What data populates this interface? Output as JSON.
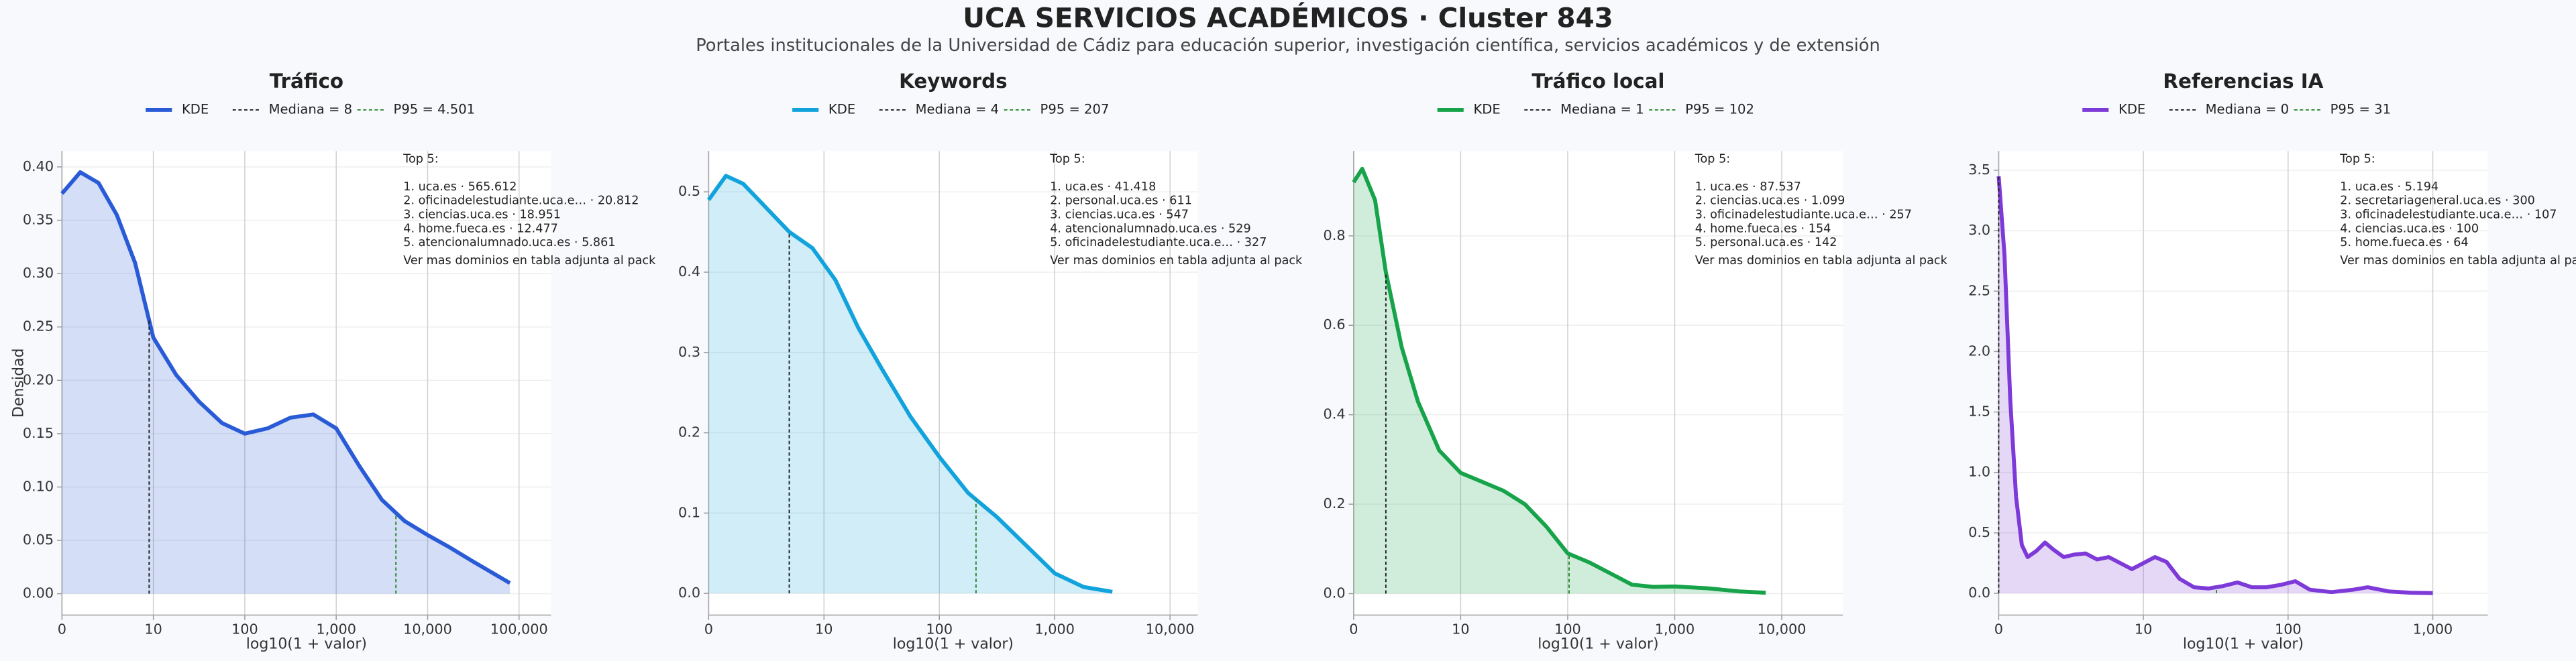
{
  "title": "UCA SERVICIOS ACADÉMICOS · Cluster 843",
  "subtitle": "Portales institucionales de la Universidad de Cádiz para educación superior, investigación científica, servicios académicos y de extensión",
  "chart_data": [
    {
      "type": "area",
      "title": "Tráfico",
      "x_label": "log10(1 + valor)",
      "y_label": "Densidad",
      "grid": true,
      "x": [
        0,
        0.2,
        0.4,
        0.6,
        0.8,
        1.0,
        1.25,
        1.5,
        1.75,
        2.0,
        2.25,
        2.5,
        2.75,
        3.0,
        3.25,
        3.5,
        3.75,
        4.0,
        4.25,
        4.5,
        4.7,
        4.9
      ],
      "series": [
        {
          "name": "KDE",
          "color": "#2a5bd7",
          "values": [
            0.375,
            0.395,
            0.385,
            0.355,
            0.31,
            0.24,
            0.205,
            0.18,
            0.16,
            0.15,
            0.155,
            0.165,
            0.168,
            0.155,
            0.12,
            0.088,
            0.068,
            0.055,
            0.043,
            0.03,
            0.02,
            0.01
          ]
        }
      ],
      "ref_lines": [
        {
          "name": "Mediana = 8",
          "x": 0.954,
          "color": "#222222"
        },
        {
          "name": "P95 = 4.501",
          "x": 3.653,
          "color": "#2e8b2e"
        }
      ],
      "xlim": [
        0,
        5.35
      ],
      "ylim": [
        -0.02,
        0.415
      ],
      "xticks": [
        {
          "value": 0,
          "label": "0"
        },
        {
          "value": 1,
          "label": "10"
        },
        {
          "value": 2,
          "label": "100"
        },
        {
          "value": 3,
          "label": "1,000"
        },
        {
          "value": 4,
          "label": "10,000"
        },
        {
          "value": 5,
          "label": "100,000"
        }
      ],
      "yticks": [
        {
          "value": 0,
          "label": "0.00"
        },
        {
          "value": 0.05,
          "label": "0.05"
        },
        {
          "value": 0.1,
          "label": "0.10"
        },
        {
          "value": 0.15,
          "label": "0.15"
        },
        {
          "value": 0.2,
          "label": "0.20"
        },
        {
          "value": 0.25,
          "label": "0.25"
        },
        {
          "value": 0.3,
          "label": "0.30"
        },
        {
          "value": 0.35,
          "label": "0.35"
        },
        {
          "value": 0.4,
          "label": "0.40"
        }
      ],
      "annotation": {
        "heading": "Top 5:",
        "items": [
          "1. uca.es · 565.612",
          "2. oficinadelestudiante.uca.e… · 20.812",
          "3. ciencias.uca.es · 18.951",
          "4. home.fueca.es · 12.477",
          "5. atencionalumnado.uca.es · 5.861"
        ],
        "footer": "Ver mas dominios en tabla adjunta al pack"
      }
    },
    {
      "type": "area",
      "title": "Keywords",
      "x_label": "log10(1 + valor)",
      "grid": true,
      "x": [
        0,
        0.15,
        0.3,
        0.5,
        0.7,
        0.9,
        1.1,
        1.3,
        1.5,
        1.75,
        2.0,
        2.25,
        2.5,
        2.75,
        3.0,
        3.25,
        3.5
      ],
      "series": [
        {
          "name": "KDE",
          "color": "#12a3dc",
          "values": [
            0.49,
            0.52,
            0.51,
            0.48,
            0.45,
            0.43,
            0.39,
            0.33,
            0.28,
            0.22,
            0.17,
            0.125,
            0.095,
            0.06,
            0.025,
            0.008,
            0.002
          ]
        }
      ],
      "ref_lines": [
        {
          "name": "Mediana = 4",
          "x": 0.699,
          "color": "#222222"
        },
        {
          "name": "P95 = 207",
          "x": 2.318,
          "color": "#2e8b2e"
        }
      ],
      "xlim": [
        0,
        4.24
      ],
      "ylim": [
        -0.027,
        0.551
      ],
      "xticks": [
        {
          "value": 0,
          "label": "0"
        },
        {
          "value": 1,
          "label": "10"
        },
        {
          "value": 2,
          "label": "100"
        },
        {
          "value": 3,
          "label": "1,000"
        },
        {
          "value": 4,
          "label": "10,000"
        }
      ],
      "yticks": [
        {
          "value": 0,
          "label": "0.0"
        },
        {
          "value": 0.1,
          "label": "0.1"
        },
        {
          "value": 0.2,
          "label": "0.2"
        },
        {
          "value": 0.3,
          "label": "0.3"
        },
        {
          "value": 0.4,
          "label": "0.4"
        },
        {
          "value": 0.5,
          "label": "0.5"
        }
      ],
      "annotation": {
        "heading": "Top 5:",
        "items": [
          "1. uca.es · 41.418",
          "2. personal.uca.es · 611",
          "3. ciencias.uca.es · 547",
          "4. atencionalumnado.uca.es · 529",
          "5. oficinadelestudiante.uca.e… · 327"
        ],
        "footer": "Ver mas dominios en tabla adjunta al pack"
      }
    },
    {
      "type": "area",
      "title": "Tráfico local",
      "x_label": "log10(1 + valor)",
      "grid": true,
      "x": [
        0,
        0.08,
        0.2,
        0.3,
        0.45,
        0.6,
        0.8,
        1.0,
        1.2,
        1.4,
        1.6,
        1.8,
        2.0,
        2.2,
        2.4,
        2.6,
        2.8,
        3.0,
        3.3,
        3.6,
        3.85
      ],
      "series": [
        {
          "name": "KDE",
          "color": "#16a34a",
          "values": [
            0.92,
            0.95,
            0.88,
            0.72,
            0.55,
            0.43,
            0.32,
            0.27,
            0.25,
            0.23,
            0.2,
            0.15,
            0.09,
            0.07,
            0.045,
            0.02,
            0.015,
            0.016,
            0.012,
            0.005,
            0.002
          ]
        }
      ],
      "ref_lines": [
        {
          "name": "Mediana = 1",
          "x": 0.301,
          "color": "#222222"
        },
        {
          "name": "P95 = 102",
          "x": 2.013,
          "color": "#2e8b2e"
        }
      ],
      "xlim": [
        0,
        4.57
      ],
      "ylim": [
        -0.048,
        0.99
      ],
      "xticks": [
        {
          "value": 0,
          "label": "0"
        },
        {
          "value": 1,
          "label": "10"
        },
        {
          "value": 2,
          "label": "100"
        },
        {
          "value": 3,
          "label": "1,000"
        },
        {
          "value": 4,
          "label": "10,000"
        }
      ],
      "yticks": [
        {
          "value": 0,
          "label": "0.0"
        },
        {
          "value": 0.2,
          "label": "0.2"
        },
        {
          "value": 0.4,
          "label": "0.4"
        },
        {
          "value": 0.6,
          "label": "0.6"
        },
        {
          "value": 0.8,
          "label": "0.8"
        }
      ],
      "annotation": {
        "heading": "Top 5:",
        "items": [
          "1. uca.es · 87.537",
          "2. ciencias.uca.es · 1.099",
          "3. oficinadelestudiante.uca.e… · 257",
          "4. home.fueca.es · 154",
          "5. personal.uca.es · 142"
        ],
        "footer": "Ver mas dominios en tabla adjunta al pack"
      }
    },
    {
      "type": "area",
      "title": "Referencias IA",
      "x_label": "log10(1 + valor)",
      "grid": true,
      "x": [
        0,
        0.04,
        0.08,
        0.12,
        0.16,
        0.2,
        0.26,
        0.32,
        0.38,
        0.45,
        0.52,
        0.6,
        0.68,
        0.76,
        0.84,
        0.92,
        1.0,
        1.08,
        1.16,
        1.25,
        1.35,
        1.45,
        1.55,
        1.65,
        1.75,
        1.85,
        1.95,
        2.05,
        2.15,
        2.3,
        2.45,
        2.55,
        2.7,
        2.85,
        3.0
      ],
      "series": [
        {
          "name": "KDE",
          "color": "#7e3ad8",
          "values": [
            3.45,
            2.8,
            1.6,
            0.8,
            0.4,
            0.3,
            0.35,
            0.42,
            0.36,
            0.3,
            0.32,
            0.33,
            0.28,
            0.3,
            0.25,
            0.2,
            0.25,
            0.3,
            0.26,
            0.12,
            0.05,
            0.04,
            0.06,
            0.09,
            0.05,
            0.05,
            0.07,
            0.1,
            0.03,
            0.01,
            0.03,
            0.05,
            0.015,
            0.005,
            0.002
          ]
        }
      ],
      "ref_lines": [
        {
          "name": "Mediana = 0",
          "x": 0,
          "color": "#222222"
        },
        {
          "name": "P95 = 31",
          "x": 1.505,
          "color": "#2e8b2e"
        }
      ],
      "xlim": [
        0,
        3.38
      ],
      "ylim": [
        -0.18,
        3.66
      ],
      "xticks": [
        {
          "value": 0,
          "label": "0"
        },
        {
          "value": 1,
          "label": "10"
        },
        {
          "value": 2,
          "label": "100"
        },
        {
          "value": 3,
          "label": "1,000"
        }
      ],
      "yticks": [
        {
          "value": 0,
          "label": "0.0"
        },
        {
          "value": 0.5,
          "label": "0.5"
        },
        {
          "value": 1,
          "label": "1.0"
        },
        {
          "value": 1.5,
          "label": "1.5"
        },
        {
          "value": 2,
          "label": "2.0"
        },
        {
          "value": 2.5,
          "label": "2.5"
        },
        {
          "value": 3,
          "label": "3.0"
        },
        {
          "value": 3.5,
          "label": "3.5"
        }
      ],
      "annotation": {
        "heading": "Top 5:",
        "items": [
          "1. uca.es · 5.194",
          "2. secretariageneral.uca.es · 300",
          "3. oficinadelestudiante.uca.e… · 107",
          "4. ciencias.uca.es · 100",
          "5. home.fueca.es · 64"
        ],
        "footer": "Ver mas dominios en tabla adjunta al pack"
      }
    }
  ]
}
